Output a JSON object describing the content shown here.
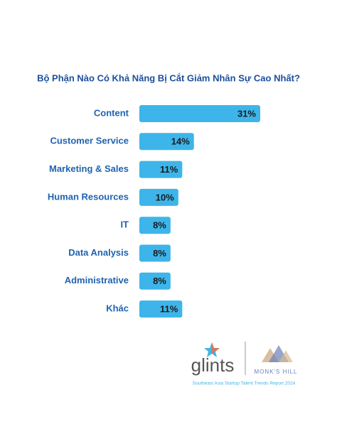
{
  "chart_data": {
    "type": "hbar",
    "title": "Bộ Phận Nào Có Khả Năng Bị Cắt Giảm Nhân Sự Cao Nhất?",
    "categories": [
      "Content",
      "Customer Service",
      "Marketing & Sales",
      "Human Resources",
      "IT",
      "Data Analysis",
      "Administrative",
      "Khác"
    ],
    "values": [
      31,
      14,
      11,
      10,
      8,
      8,
      8,
      11
    ],
    "value_labels": [
      "31%",
      "14%",
      "11%",
      "10%",
      "8%",
      "8%",
      "8%",
      "11%"
    ],
    "color": "#3db5ea"
  },
  "footer": {
    "logo_left": "glints",
    "logo_right": "MONK'S HILL",
    "caption": "Southeast Asia Startup Talent Trends Report 2024"
  }
}
